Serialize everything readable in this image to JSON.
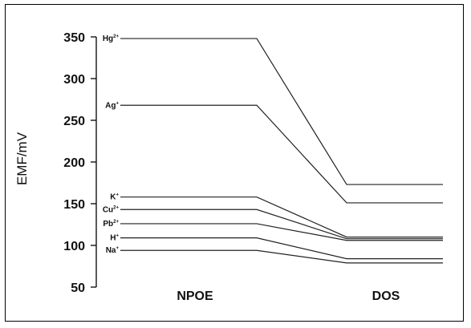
{
  "chart_data": {
    "type": "line",
    "categories": [
      "NPOE",
      "DOS"
    ],
    "ylabel": "EMF/mV",
    "ylim": [
      50,
      350
    ],
    "yticks": [
      50,
      100,
      150,
      200,
      250,
      300,
      350
    ],
    "grid": false,
    "series": [
      {
        "name": "Hg",
        "charge": "2+",
        "values": [
          348,
          173
        ]
      },
      {
        "name": "Ag",
        "charge": "+",
        "values": [
          268,
          151
        ]
      },
      {
        "name": "K",
        "charge": "+",
        "values": [
          158,
          110
        ]
      },
      {
        "name": "Cu",
        "charge": "2+",
        "values": [
          143,
          108
        ]
      },
      {
        "name": "Pb",
        "charge": "2+",
        "values": [
          126,
          106
        ]
      },
      {
        "name": "H",
        "charge": "+",
        "values": [
          109,
          84
        ]
      },
      {
        "name": "Na",
        "charge": "+",
        "values": [
          94,
          79
        ]
      }
    ]
  }
}
